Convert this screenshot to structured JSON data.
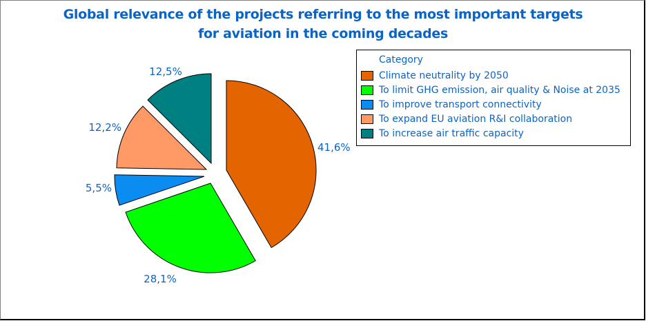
{
  "chart_data": {
    "type": "pie",
    "title": [
      "Global relevance of the projects referring to the most important targets",
      "for aviation in the coming decades"
    ],
    "legend": {
      "title": "Category",
      "placement": "right"
    },
    "slices": [
      {
        "category": "Climate neutrality by 2050",
        "value": 41.6,
        "label": "41,6%",
        "color": "#e46400"
      },
      {
        "category": "To limit GHG emission, air quality & Noise at 2035",
        "value": 28.1,
        "label": "28,1%",
        "color": "#00ff00"
      },
      {
        "category": "To improve transport connectivity",
        "value": 5.5,
        "label": "5,5%",
        "color": "#0a8cf0"
      },
      {
        "category": "To expand EU aviation R&I collaboration",
        "value": 12.2,
        "label": "12,2%",
        "color": "#ff9966"
      },
      {
        "category": "To increase air traffic capacity",
        "value": 12.5,
        "label": "12,5%",
        "color": "#008080"
      }
    ],
    "start_angle": "12 o'clock",
    "direction": "clockwise",
    "exploded": true
  }
}
